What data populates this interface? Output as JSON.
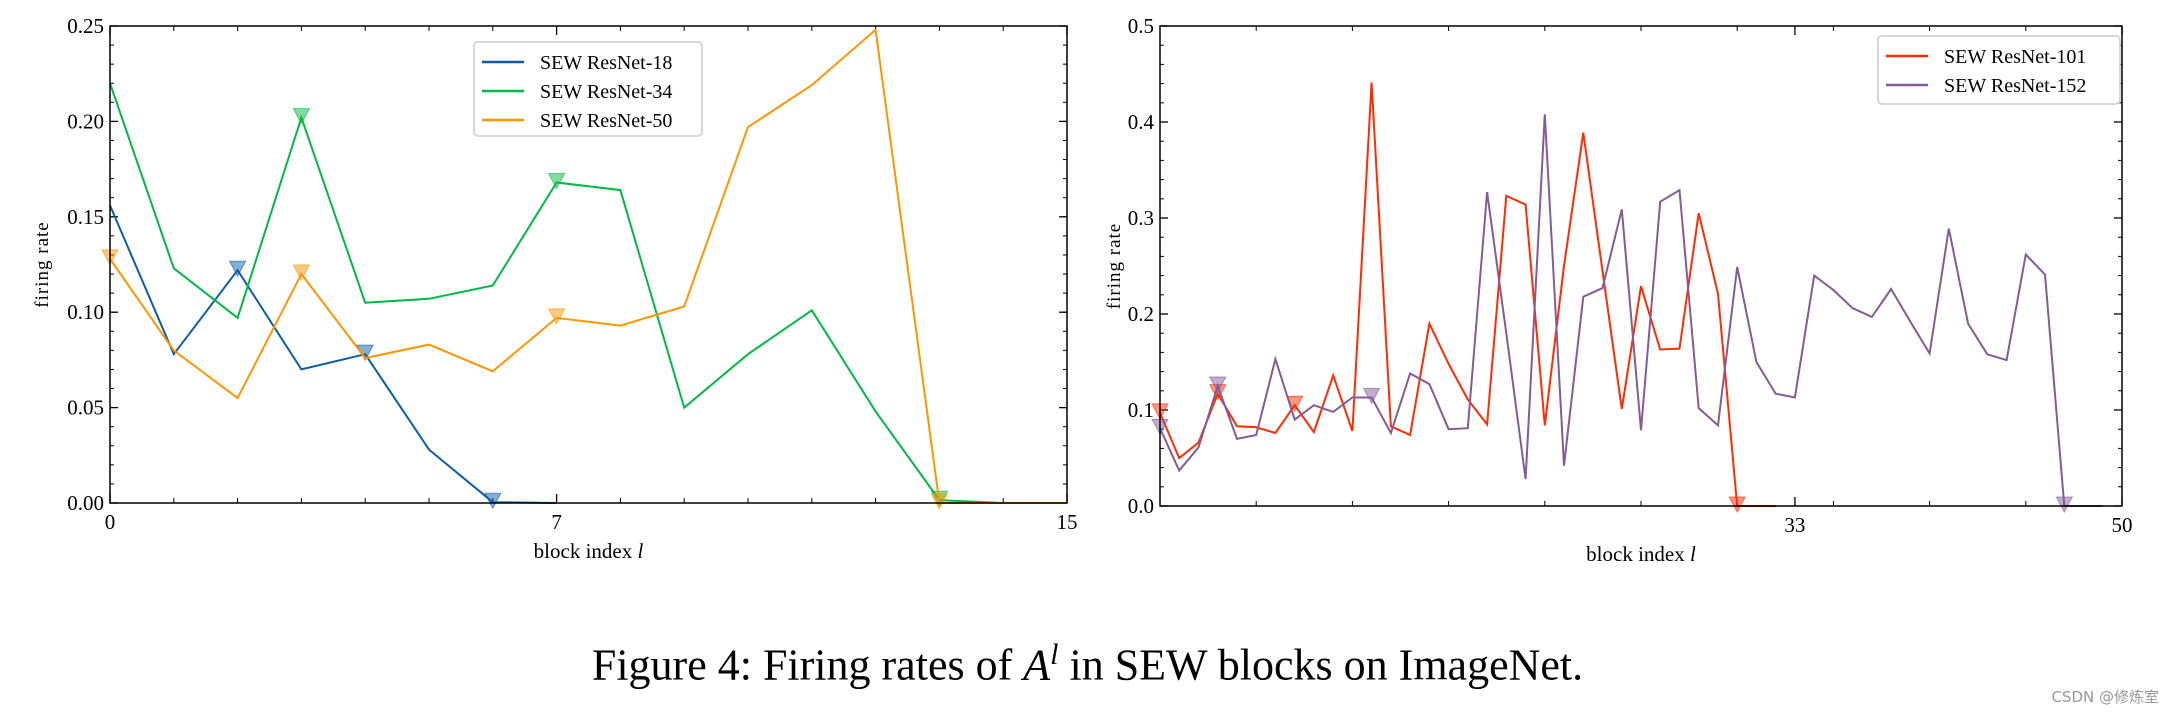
{
  "chart_data": [
    {
      "type": "line",
      "xlabel": "block index l",
      "ylabel": "firing rate",
      "xlim": [
        0,
        15
      ],
      "ylim": [
        0,
        0.25
      ],
      "xticks": [
        0,
        7,
        15
      ],
      "yticks": [
        0.0,
        0.05,
        0.1,
        0.15,
        0.2,
        0.25
      ],
      "ytick_labels": [
        "0.00",
        "0.05",
        "0.10",
        "0.15",
        "0.20",
        "0.25"
      ],
      "legend_position": "top-center",
      "marker": "downward triangle",
      "series": [
        {
          "name": "SEW ResNet-18",
          "color": "#0C5DA5",
          "x": [
            0,
            1,
            2,
            3,
            4,
            5,
            6,
            7
          ],
          "y": [
            0.156,
            0.078,
            0.122,
            0.07,
            0.078,
            0.028,
            0.0004,
            0.0
          ],
          "markers_at": [
            2,
            4,
            6
          ]
        },
        {
          "name": "SEW ResNet-34",
          "color": "#00B945",
          "x": [
            0,
            1,
            2,
            3,
            4,
            5,
            6,
            7,
            8,
            9,
            10,
            11,
            12,
            13,
            14,
            15
          ],
          "y": [
            0.22,
            0.123,
            0.097,
            0.202,
            0.105,
            0.107,
            0.114,
            0.168,
            0.164,
            0.05,
            0.078,
            0.101,
            0.048,
            0.0015,
            0.0,
            0.0
          ],
          "markers_at": [
            3,
            7,
            13
          ]
        },
        {
          "name": "SEW ResNet-50",
          "color": "#FF9500",
          "x": [
            0,
            1,
            2,
            3,
            4,
            5,
            6,
            7,
            8,
            9,
            10,
            11,
            12,
            13,
            14,
            15
          ],
          "y": [
            0.128,
            0.08,
            0.055,
            0.12,
            0.076,
            0.083,
            0.069,
            0.097,
            0.093,
            0.103,
            0.197,
            0.219,
            0.248,
            0.0,
            0.0,
            0.0
          ],
          "markers_at": [
            0,
            3,
            7,
            13
          ]
        }
      ]
    },
    {
      "type": "line",
      "xlabel": "block index l",
      "ylabel": "firing rate",
      "xlim": [
        0,
        50
      ],
      "ylim": [
        0,
        0.5
      ],
      "xticks": [
        33,
        50
      ],
      "yticks": [
        0.0,
        0.1,
        0.2,
        0.3,
        0.4,
        0.5
      ],
      "ytick_labels": [
        "0.0",
        "0.1",
        "0.2",
        "0.3",
        "0.4",
        "0.5"
      ],
      "legend_position": "top-right",
      "marker": "downward triangle",
      "series": [
        {
          "name": "SEW ResNet-101",
          "color": "#FF2C00",
          "x": [
            0,
            1,
            2,
            3,
            4,
            5,
            6,
            7,
            8,
            9,
            10,
            11,
            12,
            13,
            14,
            15,
            16,
            17,
            18,
            19,
            20,
            21,
            22,
            23,
            24,
            25,
            26,
            27,
            28,
            29,
            30,
            31,
            32
          ],
          "y": [
            0.097,
            0.05,
            0.066,
            0.117,
            0.083,
            0.082,
            0.076,
            0.105,
            0.077,
            0.136,
            0.078,
            0.441,
            0.083,
            0.074,
            0.19,
            0.148,
            0.111,
            0.085,
            0.323,
            0.314,
            0.084,
            0.25,
            0.389,
            0.245,
            0.101,
            0.229,
            0.163,
            0.164,
            0.305,
            0.221,
            0.0,
            0.0,
            0.0
          ],
          "markers_at": [
            0,
            3,
            7,
            30
          ]
        },
        {
          "name": "SEW ResNet-152",
          "color": "#845B97",
          "x": [
            0,
            1,
            2,
            3,
            4,
            5,
            6,
            7,
            8,
            9,
            10,
            11,
            12,
            13,
            14,
            15,
            16,
            17,
            18,
            19,
            20,
            21,
            22,
            23,
            24,
            25,
            26,
            27,
            28,
            29,
            30,
            31,
            32,
            33,
            34,
            35,
            36,
            37,
            38,
            39,
            40,
            41,
            42,
            43,
            44,
            45,
            46,
            47,
            48,
            49
          ],
          "y": [
            0.081,
            0.037,
            0.061,
            0.125,
            0.07,
            0.074,
            0.153,
            0.09,
            0.105,
            0.098,
            0.113,
            0.113,
            0.076,
            0.138,
            0.127,
            0.08,
            0.081,
            0.327,
            0.18,
            0.028,
            0.408,
            0.042,
            0.218,
            0.227,
            0.309,
            0.079,
            0.317,
            0.329,
            0.102,
            0.084,
            0.249,
            0.15,
            0.117,
            0.113,
            0.24,
            0.225,
            0.206,
            0.197,
            0.226,
            0.192,
            0.159,
            0.289,
            0.19,
            0.158,
            0.152,
            0.262,
            0.241,
            0.0,
            0.0,
            0.0
          ],
          "markers_at": [
            0,
            3,
            11,
            47
          ]
        }
      ]
    }
  ],
  "caption": {
    "prefix": "Figure 4: Firing rates of ",
    "symbol": "A",
    "superscript": "l",
    "suffix": " in SEW blocks on ImageNet."
  },
  "watermark": "CSDN @修炼室"
}
